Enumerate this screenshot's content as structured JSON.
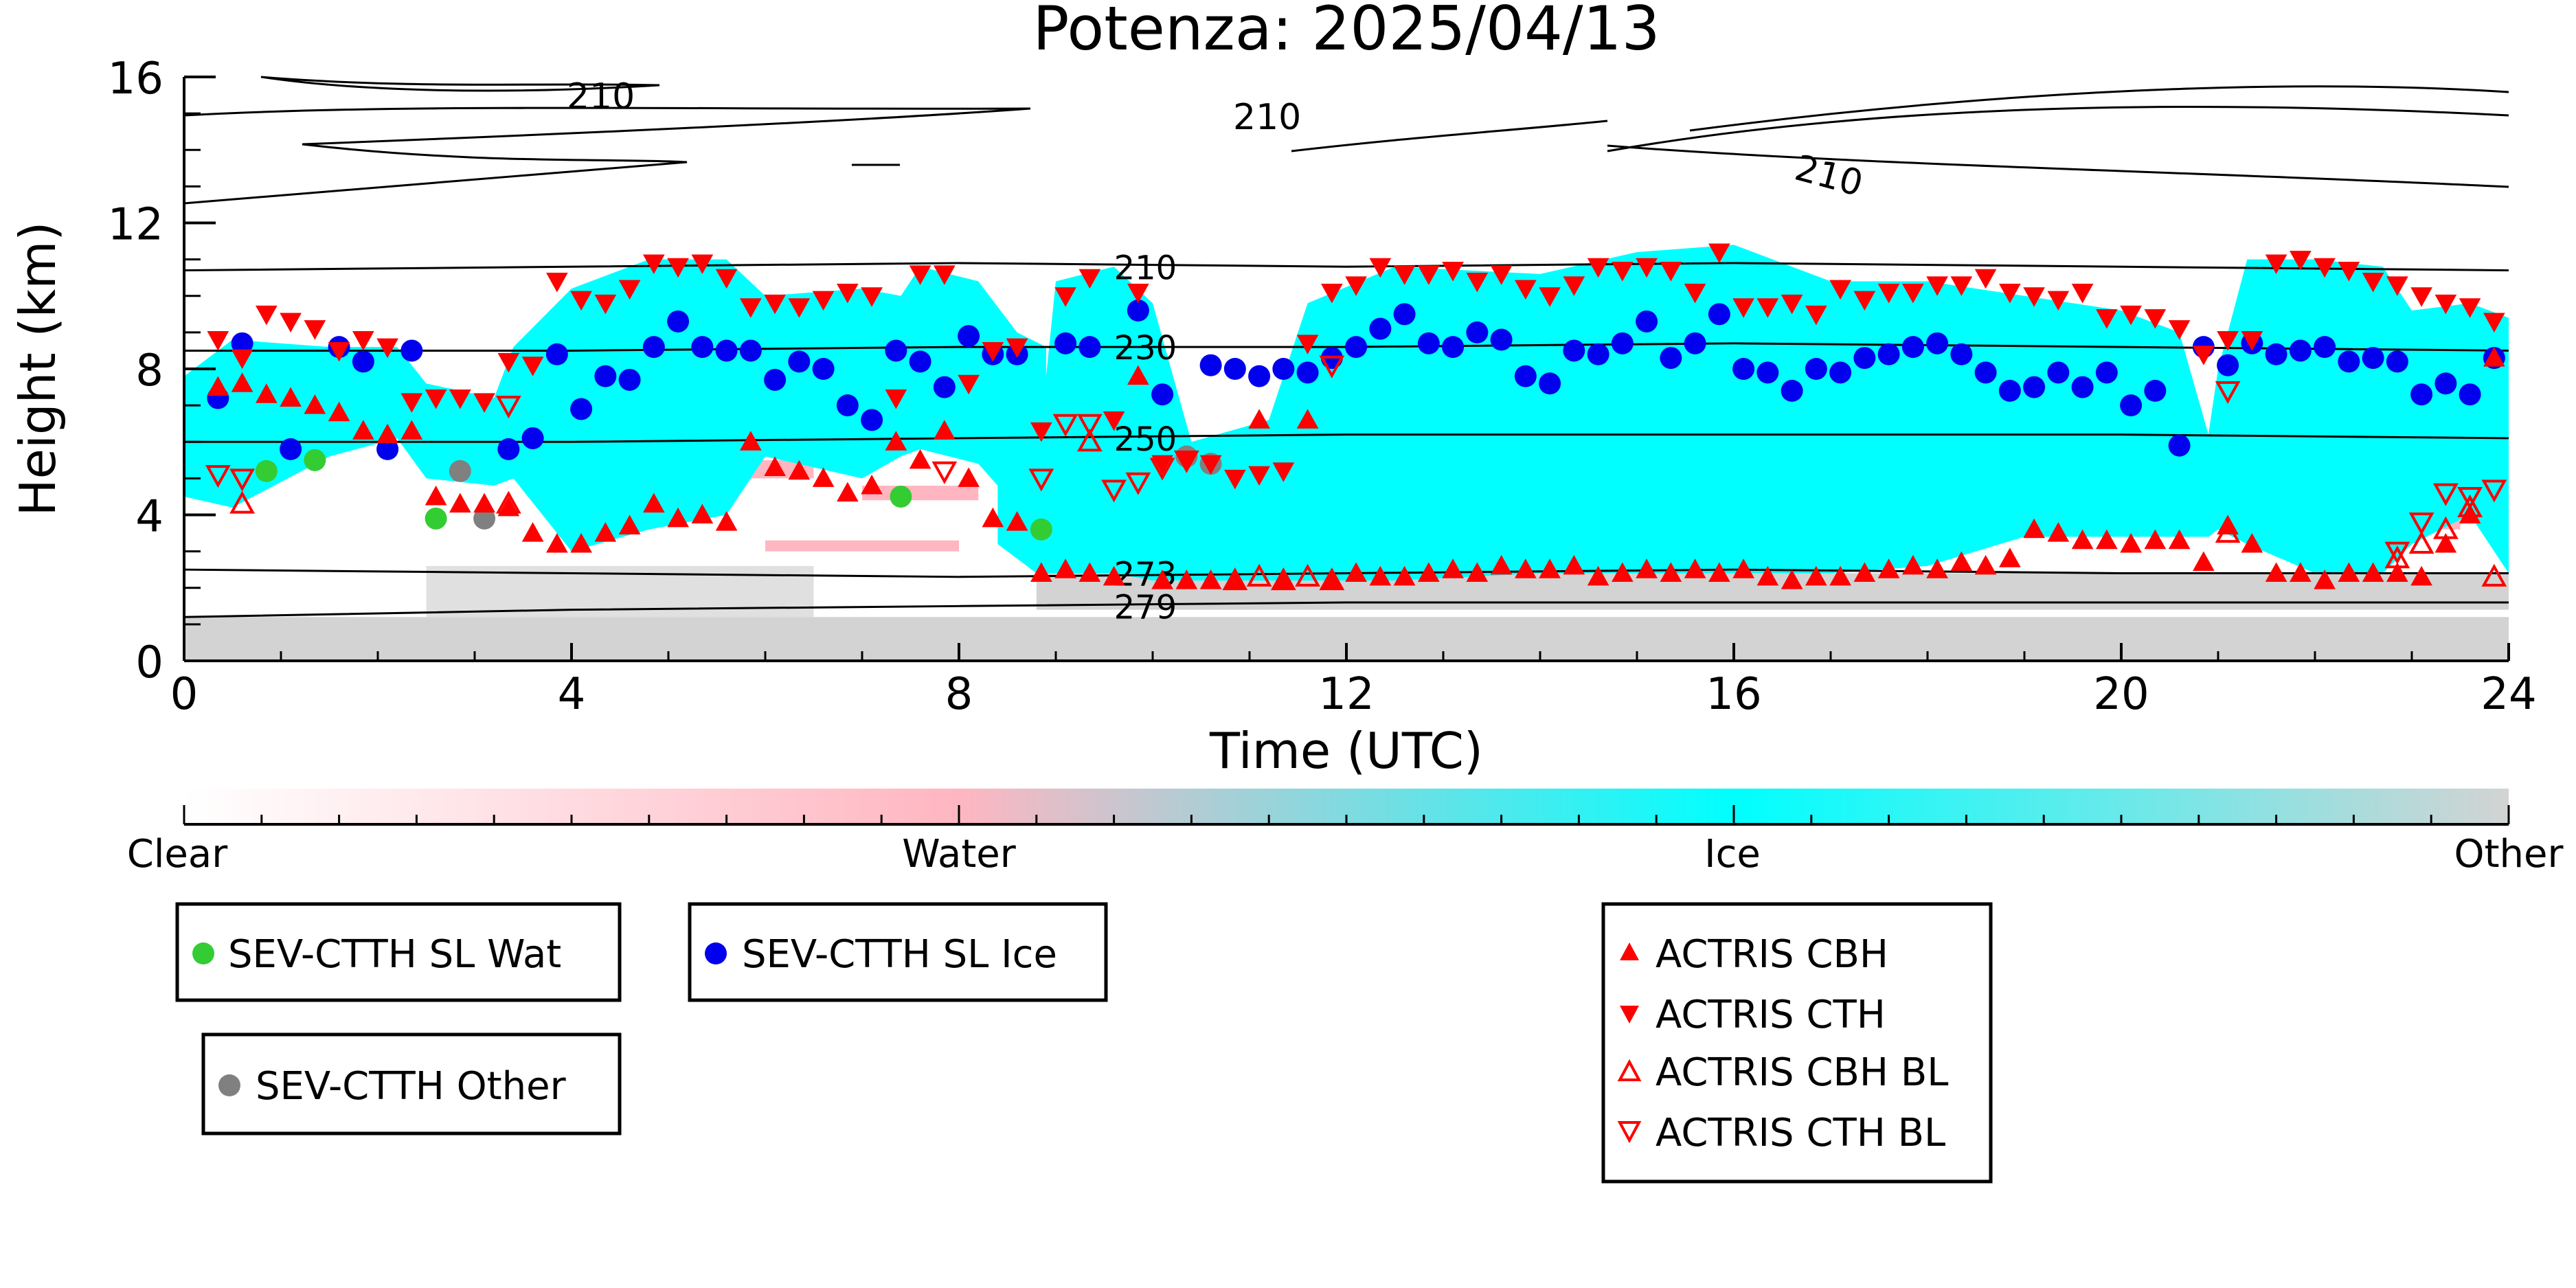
{
  "chart_data": {
    "type": "scatter",
    "title": "Potenza: 2025/04/13",
    "xlabel": "Time (UTC)",
    "ylabel": "Height (km)",
    "xlim": [
      0,
      24
    ],
    "ylim": [
      0,
      16
    ],
    "x_ticks": [
      0,
      4,
      8,
      12,
      16,
      20,
      24
    ],
    "y_ticks": [
      0,
      4,
      8,
      12,
      16
    ],
    "x_tick_labels": [
      "0",
      "4",
      "8",
      "12",
      "16",
      "20",
      "24"
    ],
    "y_tick_labels": [
      "0",
      "4",
      "8",
      "12",
      "16"
    ],
    "grid": false,
    "colorbar": {
      "labels": [
        "Clear",
        "Water",
        "Ice",
        "Other"
      ],
      "colors": [
        "#ffffff",
        "#ffb6c1",
        "#00ffff",
        "#d3d3d3"
      ]
    },
    "contours": [
      {
        "label": "210",
        "points": [
          [
            0.0,
            10.7
          ],
          [
            4,
            10.8
          ],
          [
            8,
            10.9
          ],
          [
            12,
            10.8
          ],
          [
            16,
            10.9
          ],
          [
            20,
            10.8
          ],
          [
            24,
            10.7
          ]
        ],
        "label_at": [
          9.6,
          10.8
        ]
      },
      {
        "label": "230",
        "points": [
          [
            0.0,
            8.5
          ],
          [
            4,
            8.5
          ],
          [
            8,
            8.6
          ],
          [
            12,
            8.6
          ],
          [
            16,
            8.7
          ],
          [
            20,
            8.6
          ],
          [
            24,
            8.5
          ]
        ],
        "label_at": [
          9.6,
          8.6
        ]
      },
      {
        "label": "250",
        "points": [
          [
            0.0,
            6.0
          ],
          [
            4,
            6.0
          ],
          [
            8,
            6.1
          ],
          [
            12,
            6.2
          ],
          [
            16,
            6.2
          ],
          [
            20,
            6.2
          ],
          [
            24,
            6.1
          ]
        ],
        "label_at": [
          9.6,
          6.1
        ]
      },
      {
        "label": "273",
        "points": [
          [
            0.0,
            2.5
          ],
          [
            4,
            2.4
          ],
          [
            8,
            2.3
          ],
          [
            12,
            2.4
          ],
          [
            16,
            2.5
          ],
          [
            20,
            2.4
          ],
          [
            24,
            2.4
          ]
        ],
        "label_at": [
          9.6,
          2.4
        ]
      },
      {
        "label": "279",
        "points": [
          [
            0.0,
            1.2
          ],
          [
            4,
            1.4
          ],
          [
            8,
            1.5
          ],
          [
            12,
            1.6
          ],
          [
            16,
            1.6
          ],
          [
            20,
            1.6
          ],
          [
            24,
            1.6
          ]
        ],
        "label_at": [
          9.6,
          1.5
        ]
      }
    ],
    "upper_contour_labels": [
      "210",
      "210",
      "210"
    ],
    "series": [
      {
        "name": "SEV-CTTH SL Wat",
        "marker": "circle",
        "color": "#33cc33",
        "x": [
          0.85,
          1.35,
          2.6,
          7.4,
          8.85
        ],
        "y": [
          5.2,
          5.5,
          3.9,
          4.5,
          3.6
        ]
      },
      {
        "name": "SEV-CTTH SL Ice",
        "marker": "circle",
        "color": "#0000ee",
        "x": [
          0.35,
          0.6,
          1.1,
          1.6,
          1.85,
          2.1,
          2.35,
          3.35,
          3.6,
          3.85,
          4.1,
          4.35,
          4.6,
          4.85,
          5.1,
          5.35,
          5.6,
          5.85,
          6.1,
          6.35,
          6.6,
          6.85,
          7.1,
          7.35,
          7.6,
          7.85,
          8.1,
          8.35,
          8.6,
          9.1,
          9.35,
          9.85,
          10.1,
          10.6,
          10.85,
          11.1,
          11.35,
          11.6,
          11.85,
          12.1,
          12.35,
          12.6,
          12.85,
          13.1,
          13.35,
          13.6,
          13.85,
          14.1,
          14.35,
          14.6,
          14.85,
          15.1,
          15.35,
          15.6,
          15.85,
          16.1,
          16.35,
          16.6,
          16.85,
          17.1,
          17.35,
          17.6,
          17.85,
          18.1,
          18.35,
          18.6,
          18.85,
          19.1,
          19.35,
          19.6,
          19.85,
          20.1,
          20.35,
          20.6,
          20.85,
          21.1,
          21.35,
          21.6,
          21.85,
          22.1,
          22.35,
          22.6,
          22.85,
          23.1,
          23.35,
          23.6,
          23.85
        ],
        "y": [
          7.2,
          8.7,
          5.8,
          8.6,
          8.2,
          5.8,
          8.5,
          5.8,
          6.1,
          8.4,
          6.9,
          7.8,
          7.7,
          8.6,
          9.3,
          8.6,
          8.5,
          8.5,
          7.7,
          8.2,
          8.0,
          7.0,
          6.6,
          8.5,
          8.2,
          7.5,
          8.9,
          8.4,
          8.4,
          8.7,
          8.6,
          9.6,
          7.3,
          8.1,
          8.0,
          7.8,
          8.0,
          7.9,
          8.3,
          8.6,
          9.1,
          9.5,
          8.7,
          8.6,
          9.0,
          8.8,
          7.8,
          7.6,
          8.5,
          8.4,
          8.7,
          9.3,
          8.3,
          8.7,
          9.5,
          8.0,
          7.9,
          7.4,
          8.0,
          7.9,
          8.3,
          8.4,
          8.6,
          8.7,
          8.4,
          7.9,
          7.4,
          7.5,
          7.9,
          7.5,
          7.9,
          7.0,
          7.4,
          5.9,
          8.6,
          8.1,
          8.7,
          8.4,
          8.5,
          8.6,
          8.2,
          8.3,
          8.2,
          7.3,
          7.6,
          7.3,
          8.3
        ]
      },
      {
        "name": "SEV-CTTH Other",
        "marker": "circle",
        "color": "#808080",
        "x": [
          2.85,
          3.1,
          10.35,
          10.6
        ],
        "y": [
          5.2,
          3.9,
          5.6,
          5.4
        ]
      },
      {
        "name": "ACTRIS CBH",
        "marker": "triangle-up-filled",
        "color": "#ff0000",
        "x": [
          0.35,
          0.6,
          0.85,
          1.1,
          1.35,
          1.6,
          1.85,
          2.1,
          2.35,
          2.6,
          2.85,
          3.1,
          3.35,
          3.6,
          3.85,
          4.1,
          4.35,
          4.6,
          4.85,
          5.1,
          5.35,
          5.6,
          5.85,
          6.1,
          6.35,
          6.6,
          6.85,
          7.1,
          7.35,
          7.6,
          7.85,
          8.1,
          8.35,
          8.6,
          8.85,
          9.1,
          9.35,
          9.6,
          9.85,
          10.1,
          10.35,
          10.6,
          10.85,
          11.1,
          11.35,
          11.6,
          11.85,
          12.1,
          12.35,
          12.6,
          12.85,
          13.1,
          13.35,
          13.6,
          13.85,
          14.1,
          14.35,
          14.6,
          14.85,
          15.1,
          15.35,
          15.6,
          15.85,
          16.1,
          16.35,
          16.6,
          16.85,
          17.1,
          17.35,
          17.6,
          17.85,
          18.1,
          18.35,
          18.6,
          18.85,
          19.1,
          19.35,
          19.6,
          19.85,
          20.1,
          20.35,
          20.6,
          20.85,
          21.1,
          21.35,
          21.6,
          21.85,
          22.1,
          22.35,
          22.6,
          22.85,
          23.1,
          23.35,
          23.6,
          23.85
        ],
        "y": [
          7.5,
          7.6,
          7.3,
          7.2,
          7.0,
          6.8,
          6.3,
          6.2,
          6.3,
          4.5,
          4.3,
          4.3,
          4.2,
          3.5,
          3.2,
          3.2,
          3.5,
          3.7,
          4.3,
          3.9,
          4.0,
          3.8,
          6.0,
          5.3,
          5.2,
          5.0,
          4.6,
          4.8,
          6.0,
          5.5,
          6.3,
          5.0,
          3.9,
          3.8,
          2.4,
          2.5,
          2.4,
          2.3,
          7.8,
          2.2,
          2.2,
          2.2,
          2.2,
          6.6,
          2.2,
          6.6,
          2.2,
          2.4,
          2.3,
          2.3,
          2.4,
          2.5,
          2.4,
          2.6,
          2.5,
          2.5,
          2.6,
          2.3,
          2.4,
          2.5,
          2.4,
          2.5,
          2.4,
          2.5,
          2.3,
          2.2,
          2.3,
          2.3,
          2.4,
          2.5,
          2.6,
          2.5,
          2.7,
          2.6,
          2.8,
          3.6,
          3.5,
          3.3,
          3.3,
          3.2,
          3.3,
          3.3,
          2.7,
          3.7,
          3.2,
          2.4,
          2.4,
          2.2,
          2.4,
          2.4,
          2.4,
          2.3,
          3.2,
          4.0,
          8.3
        ]
      },
      {
        "name": "ACTRIS CTH",
        "marker": "triangle-down-filled",
        "color": "#ff0000",
        "x": [
          0.35,
          0.6,
          0.85,
          1.1,
          1.35,
          1.6,
          1.85,
          2.1,
          2.35,
          2.6,
          2.85,
          3.1,
          3.35,
          3.6,
          3.85,
          4.1,
          4.35,
          4.6,
          4.85,
          5.1,
          5.35,
          5.6,
          5.85,
          6.1,
          6.35,
          6.6,
          6.85,
          7.1,
          7.35,
          7.6,
          7.85,
          8.1,
          8.35,
          8.6,
          8.85,
          9.1,
          9.35,
          9.6,
          9.85,
          10.1,
          10.35,
          10.6,
          10.85,
          11.1,
          11.35,
          11.6,
          11.85,
          12.1,
          12.35,
          12.6,
          12.85,
          13.1,
          13.35,
          13.6,
          13.85,
          14.1,
          14.35,
          14.6,
          14.85,
          15.1,
          15.35,
          15.6,
          15.85,
          16.1,
          16.35,
          16.6,
          16.85,
          17.1,
          17.35,
          17.6,
          17.85,
          18.1,
          18.35,
          18.6,
          18.85,
          19.1,
          19.35,
          19.6,
          19.85,
          20.1,
          20.35,
          20.6,
          20.85,
          21.1,
          21.35,
          21.6,
          21.85,
          22.1,
          22.35,
          22.6,
          22.85,
          23.1,
          23.35,
          23.6,
          23.85
        ],
        "y": [
          8.8,
          8.3,
          9.5,
          9.3,
          9.1,
          8.5,
          8.8,
          8.6,
          7.1,
          7.2,
          7.2,
          7.1,
          8.2,
          8.1,
          10.4,
          9.9,
          9.8,
          10.2,
          10.9,
          10.8,
          10.9,
          10.5,
          9.7,
          9.8,
          9.7,
          9.9,
          10.1,
          10.0,
          7.2,
          10.6,
          10.6,
          7.6,
          8.5,
          8.6,
          6.3,
          10.0,
          10.5,
          6.6,
          10.1,
          5.4,
          5.5,
          5.4,
          5.0,
          5.1,
          5.2,
          8.7,
          10.1,
          10.3,
          10.8,
          10.6,
          10.6,
          10.7,
          10.4,
          10.6,
          10.2,
          10.0,
          10.3,
          10.8,
          10.7,
          10.8,
          10.7,
          10.1,
          11.2,
          9.7,
          9.7,
          9.8,
          9.5,
          10.2,
          9.9,
          10.1,
          10.1,
          10.3,
          10.3,
          10.5,
          10.1,
          10.0,
          9.9,
          10.1,
          9.4,
          9.5,
          9.4,
          9.1,
          8.4,
          8.8,
          8.8,
          10.9,
          11.0,
          10.8,
          10.7,
          10.4,
          10.3,
          10.0,
          9.8,
          9.7,
          9.3
        ]
      },
      {
        "name": "ACTRIS CBH BL",
        "marker": "triangle-up-open",
        "color": "#ff0000",
        "x": [
          0.6,
          3.35,
          9.35,
          10.85,
          11.1,
          11.35,
          11.6,
          11.85,
          21.1,
          22.85,
          23.1,
          23.35,
          23.6,
          23.85
        ],
        "y": [
          4.3,
          4.3,
          6.0,
          2.2,
          2.3,
          2.2,
          2.3,
          2.2,
          3.5,
          2.8,
          3.2,
          3.6,
          4.2,
          2.3
        ]
      },
      {
        "name": "ACTRIS CTH BL",
        "marker": "triangle-down-open",
        "color": "#ff0000",
        "x": [
          0.35,
          0.6,
          3.35,
          7.85,
          8.85,
          9.1,
          9.35,
          9.6,
          9.85,
          10.1,
          10.35,
          11.85,
          21.1,
          22.85,
          23.1,
          23.35,
          23.6,
          23.85
        ],
        "y": [
          5.1,
          5.0,
          7.0,
          5.2,
          5.0,
          6.5,
          6.5,
          4.7,
          4.9,
          5.3,
          5.5,
          8.1,
          7.4,
          3.0,
          3.8,
          4.6,
          4.5,
          4.7
        ]
      }
    ]
  }
}
